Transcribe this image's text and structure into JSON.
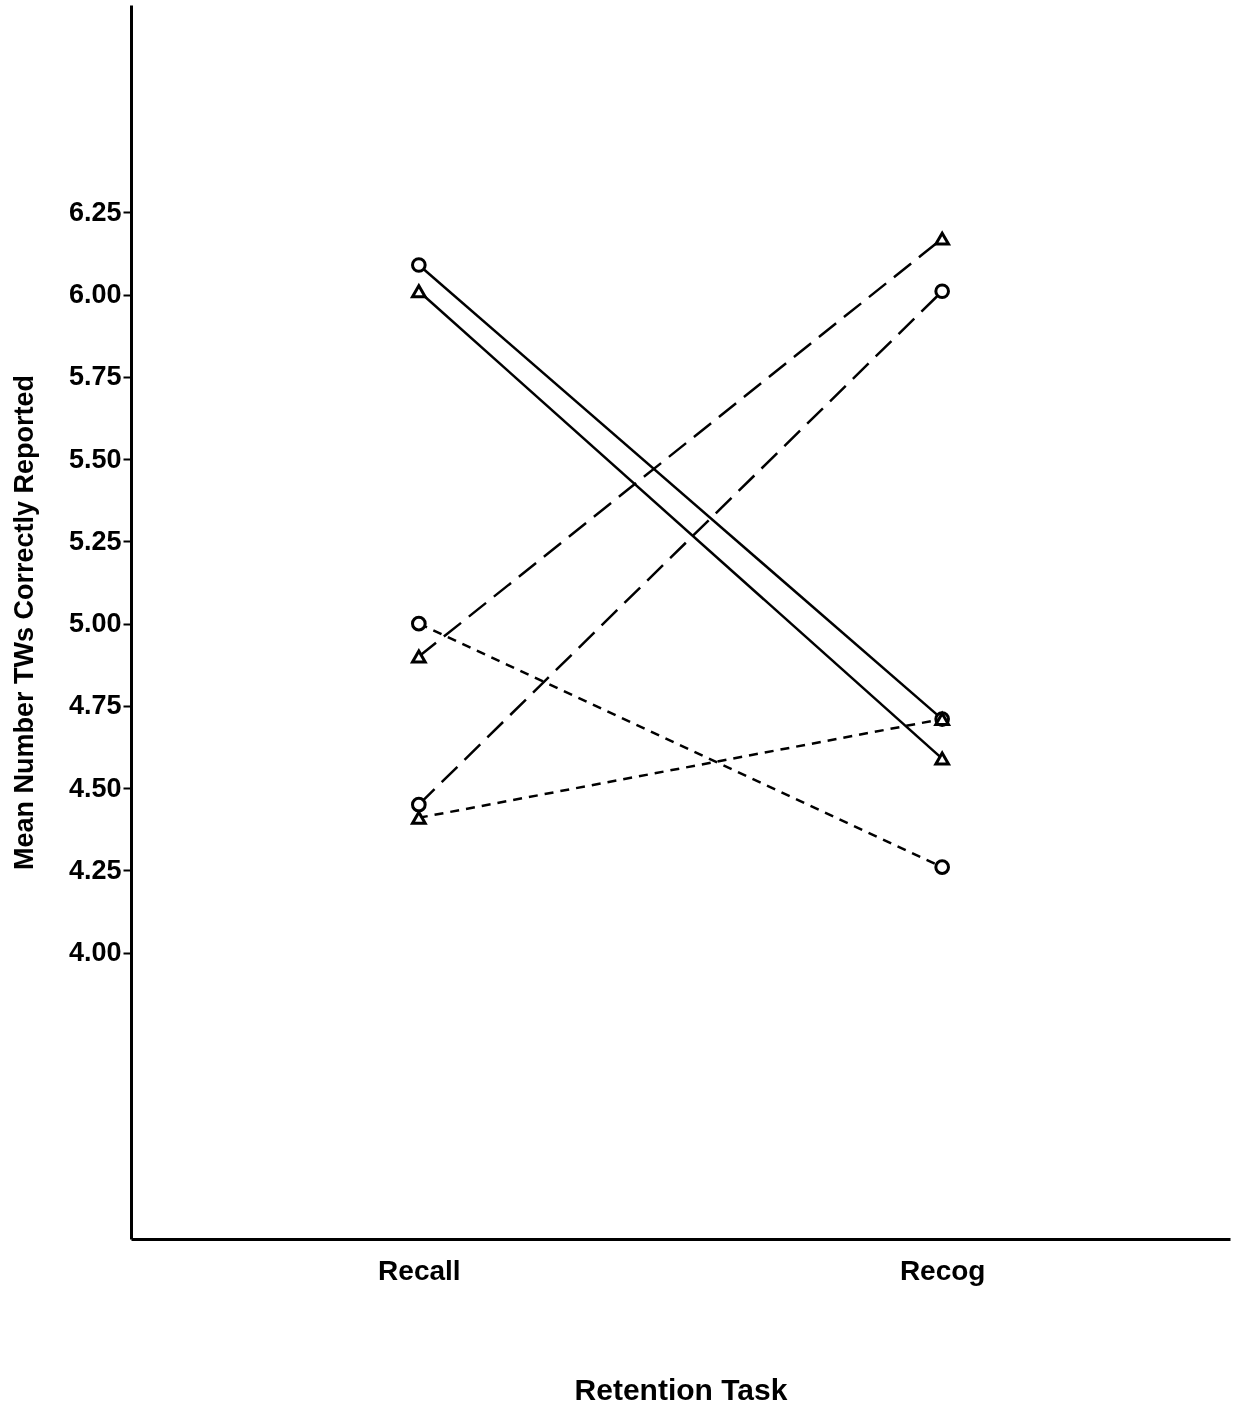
{
  "chart_data": {
    "type": "line",
    "xlabel": "Retention Task",
    "ylabel": "Mean Number TWs Correctly Reported",
    "categories": [
      "Recall",
      "Recog"
    ],
    "ylim": [
      3.13,
      6.88
    ],
    "yticks": [
      {
        "value": 4,
        "label": "4.00"
      },
      4.25,
      {
        "value": 4.5,
        "label": "4.50"
      },
      4.75,
      {
        "value": 5,
        "label": "5.00"
      },
      5.25,
      {
        "value": 5.5,
        "label": "5.50"
      },
      5.75,
      {
        "value": 6,
        "label": "6.00"
      },
      6.25
    ],
    "grid": false,
    "series": [
      {
        "color": "#000000",
        "marker": "circle",
        "line_style": "solid",
        "values": [
          6.09,
          4.71
        ]
      },
      {
        "color": "#000000",
        "marker": "triangle",
        "line_style": "solid",
        "values": [
          6.01,
          4.59
        ]
      },
      {
        "color": "#000000",
        "marker": "triangle",
        "line_style": "dashed",
        "values": [
          4.9,
          6.17
        ]
      },
      {
        "color": "#000000",
        "marker": "circle",
        "line_style": "dashed",
        "values": [
          4.45,
          6.01
        ]
      },
      {
        "color": "#000000",
        "marker": "circle",
        "line_style": "dotted",
        "values": [
          5.0,
          4.26
        ]
      },
      {
        "color": "#000000",
        "marker": "triangle",
        "line_style": "dotted",
        "values": [
          4.41,
          4.71
        ]
      }
    ]
  }
}
